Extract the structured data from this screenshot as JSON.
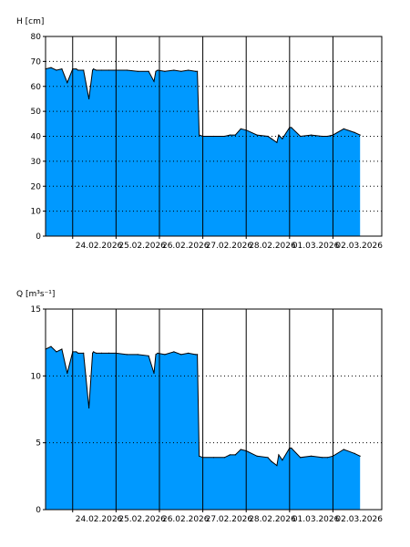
{
  "chart_data": [
    {
      "type": "area",
      "ylabel": "H [cm]",
      "ylim": [
        0,
        80
      ],
      "yticks": [
        0,
        10,
        20,
        30,
        40,
        50,
        60,
        70,
        80
      ],
      "xlim": [
        "2026-02-23T09:00",
        "2026-03-03T03:00"
      ],
      "xticks": [
        "24.02.2026",
        "25.02.2026",
        "26.02.2026",
        "27.02.2026",
        "28.02.2026",
        "01.03.2026",
        "02.03.2026"
      ],
      "grid": {
        "vertical": "solid",
        "horizontal": "dotted"
      },
      "fill_color": "#0099ff",
      "line_color": "#000000",
      "x": [
        "2026-02-23T09:00",
        "2026-02-23T12:00",
        "2026-02-23T15:00",
        "2026-02-23T18:00",
        "2026-02-23T21:00",
        "2026-02-24T00:00",
        "2026-02-24T02:00",
        "2026-02-24T03:00",
        "2026-02-24T06:00",
        "2026-02-24T09:00",
        "2026-02-24T11:00",
        "2026-02-24T11:30",
        "2026-02-24T13:00",
        "2026-02-24T16:00",
        "2026-02-24T20:00",
        "2026-02-25T00:00",
        "2026-02-25T06:00",
        "2026-02-25T12:00",
        "2026-02-25T18:00",
        "2026-02-25T21:00",
        "2026-02-25T22:00",
        "2026-02-25T23:00",
        "2026-02-26T03:00",
        "2026-02-26T08:00",
        "2026-02-26T12:00",
        "2026-02-26T16:00",
        "2026-02-26T20:00",
        "2026-02-26T21:00",
        "2026-02-26T22:00",
        "2026-02-27T00:00",
        "2026-02-27T06:00",
        "2026-02-27T12:00",
        "2026-02-27T15:00",
        "2026-02-27T18:00",
        "2026-02-27T21:00",
        "2026-02-28T00:00",
        "2026-02-28T06:00",
        "2026-02-28T12:00",
        "2026-02-28T14:00",
        "2026-02-28T17:00",
        "2026-02-28T18:00",
        "2026-02-28T20:00",
        "2026-03-01T00:00",
        "2026-03-01T01:00",
        "2026-03-01T06:00",
        "2026-03-01T12:00",
        "2026-03-01T18:00",
        "2026-03-01T21:00",
        "2026-03-02T00:00",
        "2026-03-02T06:00",
        "2026-03-02T12:00",
        "2026-03-02T15:00"
      ],
      "y": [
        67,
        67.5,
        66.5,
        67,
        61.5,
        67,
        67,
        66.5,
        66.5,
        55,
        66.5,
        67,
        66.5,
        66.5,
        66.5,
        66.5,
        66.5,
        66,
        66,
        62,
        66,
        66.5,
        66,
        66.5,
        66,
        66.5,
        66,
        66,
        40.5,
        40,
        40,
        40,
        40.5,
        40.5,
        43,
        42.5,
        40.5,
        40,
        39,
        37.5,
        40.5,
        39,
        43.5,
        43.5,
        40,
        40.5,
        40,
        40,
        40.5,
        43,
        41.5,
        40.5
      ]
    },
    {
      "type": "area",
      "ylabel": "Q [m³s⁻¹]",
      "ylim": [
        0,
        15
      ],
      "yticks": [
        0,
        5,
        10,
        15
      ],
      "xlim": [
        "2026-02-23T09:00",
        "2026-03-03T03:00"
      ],
      "xticks": [
        "24.02.2026",
        "25.02.2026",
        "26.02.2026",
        "27.02.2026",
        "28.02.2026",
        "01.03.2026",
        "02.03.2026"
      ],
      "grid": {
        "vertical": "solid",
        "horizontal": "dotted"
      },
      "fill_color": "#0099ff",
      "line_color": "#000000",
      "x": [
        "2026-02-23T09:00",
        "2026-02-23T12:00",
        "2026-02-23T15:00",
        "2026-02-23T18:00",
        "2026-02-23T21:00",
        "2026-02-24T00:00",
        "2026-02-24T02:00",
        "2026-02-24T03:00",
        "2026-02-24T06:00",
        "2026-02-24T09:00",
        "2026-02-24T11:00",
        "2026-02-24T11:30",
        "2026-02-24T13:00",
        "2026-02-24T16:00",
        "2026-02-24T20:00",
        "2026-02-25T00:00",
        "2026-02-25T06:00",
        "2026-02-25T12:00",
        "2026-02-25T18:00",
        "2026-02-25T21:00",
        "2026-02-25T22:00",
        "2026-02-25T23:00",
        "2026-02-26T03:00",
        "2026-02-26T08:00",
        "2026-02-26T12:00",
        "2026-02-26T16:00",
        "2026-02-26T20:00",
        "2026-02-26T21:00",
        "2026-02-26T22:00",
        "2026-02-27T00:00",
        "2026-02-27T06:00",
        "2026-02-27T12:00",
        "2026-02-27T15:00",
        "2026-02-27T18:00",
        "2026-02-27T21:00",
        "2026-02-28T00:00",
        "2026-02-28T06:00",
        "2026-02-28T12:00",
        "2026-02-28T14:00",
        "2026-02-28T17:00",
        "2026-02-28T18:00",
        "2026-02-28T20:00",
        "2026-03-01T00:00",
        "2026-03-01T01:00",
        "2026-03-01T06:00",
        "2026-03-01T12:00",
        "2026-03-01T18:00",
        "2026-03-01T21:00",
        "2026-03-02T00:00",
        "2026-03-02T06:00",
        "2026-03-02T12:00",
        "2026-03-02T15:00"
      ],
      "y": [
        12,
        12.2,
        11.8,
        12,
        10.2,
        11.8,
        11.8,
        11.7,
        11.7,
        7.6,
        11.7,
        11.8,
        11.7,
        11.7,
        11.7,
        11.7,
        11.6,
        11.6,
        11.5,
        10.2,
        11.6,
        11.7,
        11.6,
        11.8,
        11.6,
        11.7,
        11.6,
        11.6,
        4,
        3.9,
        3.9,
        3.9,
        4.1,
        4.1,
        4.5,
        4.4,
        4,
        3.9,
        3.6,
        3.3,
        4.1,
        3.7,
        4.6,
        4.6,
        3.9,
        4,
        3.9,
        3.9,
        4,
        4.5,
        4.2,
        4
      ]
    }
  ]
}
